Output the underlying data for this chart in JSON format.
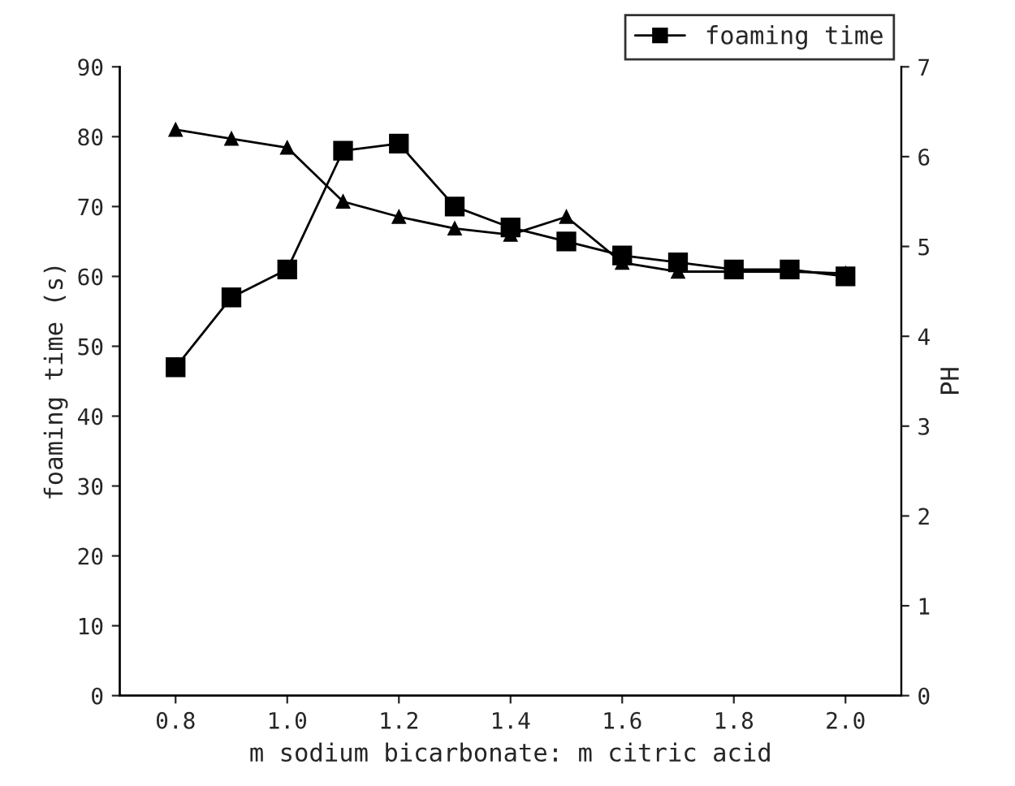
{
  "chart_data": {
    "type": "line",
    "xlabel": "m sodium bicarbonate: m citric acid",
    "ylabel": "foaming time (s)",
    "y2label": "PH",
    "x": [
      0.8,
      0.9,
      1.0,
      1.1,
      1.2,
      1.3,
      1.4,
      1.5,
      1.6,
      1.7,
      1.8,
      1.9,
      2.0
    ],
    "series": [
      {
        "name": "foaming time",
        "color": "#000000",
        "marker": "square",
        "values": [
          47,
          57,
          61,
          78,
          79,
          70,
          67,
          65,
          63,
          62,
          61,
          61,
          60
        ]
      },
      {
        "color": "#000000",
        "marker": "triangle",
        "axis": "y2",
        "values": [
          6.3,
          6.2,
          6.1,
          5.5,
          5.33,
          5.2,
          5.13,
          5.33,
          4.82,
          4.72,
          4.72,
          4.72,
          4.7
        ]
      }
    ],
    "xlim": [
      0.7,
      2.1
    ],
    "xticks": [
      {
        "value": 0.8,
        "label": "0.8"
      },
      {
        "value": 1.0,
        "label": "1.0"
      },
      {
        "value": 1.2,
        "label": "1.2"
      },
      {
        "value": 1.4,
        "label": "1.4"
      },
      {
        "value": 1.6,
        "label": "1.6"
      },
      {
        "value": 1.8,
        "label": "1.8"
      },
      {
        "value": 2.0,
        "label": "2.0"
      }
    ],
    "ylim": [
      0,
      90
    ],
    "yticks": [
      0,
      10,
      20,
      30,
      40,
      50,
      60,
      70,
      80,
      90
    ],
    "y2lim": [
      0,
      7
    ],
    "y2ticks": [
      0,
      1,
      2,
      3,
      4,
      5,
      6,
      7
    ],
    "legend": "top right",
    "grid": false,
    "line_style": "solid"
  }
}
